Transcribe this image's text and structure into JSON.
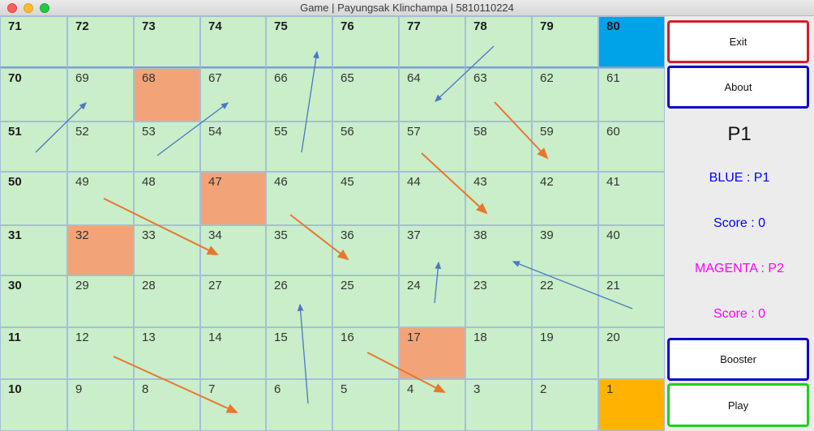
{
  "window": {
    "title": "Game | Payungsak Klinchampa | 5810110224"
  },
  "board": {
    "rows": [
      [
        71,
        72,
        73,
        74,
        75,
        76,
        77,
        78,
        79,
        80
      ],
      [
        70,
        69,
        68,
        67,
        66,
        65,
        64,
        63,
        62,
        61
      ],
      [
        51,
        52,
        53,
        54,
        55,
        56,
        57,
        58,
        59,
        60
      ],
      [
        50,
        49,
        48,
        47,
        46,
        45,
        44,
        43,
        42,
        41
      ],
      [
        31,
        32,
        33,
        34,
        35,
        36,
        37,
        38,
        39,
        40
      ],
      [
        30,
        29,
        28,
        27,
        26,
        25,
        24,
        23,
        22,
        21
      ],
      [
        11,
        12,
        13,
        14,
        15,
        16,
        17,
        18,
        19,
        20
      ],
      [
        10,
        9,
        8,
        7,
        6,
        5,
        4,
        3,
        2,
        1
      ]
    ],
    "bold_cells": [
      71,
      72,
      73,
      74,
      75,
      76,
      77,
      78,
      79,
      80,
      70,
      51,
      50,
      31,
      30,
      11,
      10
    ],
    "cell_colors": {
      "80": "#00a2e8",
      "1": "#ffb300",
      "68": "#f2a478",
      "47": "#f2a478",
      "32": "#f2a478",
      "17": "#f2a478"
    },
    "ladder_color": "#4a78c2",
    "snake_color": "#e8772e"
  },
  "panel": {
    "exit_label": "Exit",
    "about_label": "About",
    "current_player": "P1",
    "blue_label": "BLUE : P1",
    "blue_score": "Score : 0",
    "magenta_label": "MAGENTA : P2",
    "magenta_score": "Score : 0",
    "booster_label": "Booster",
    "play_label": "Play",
    "colors": {
      "blue": "#0000ff",
      "magenta": "#ff00ff",
      "exit_border": "#d21f2a",
      "play_border": "#1ed01e"
    }
  }
}
